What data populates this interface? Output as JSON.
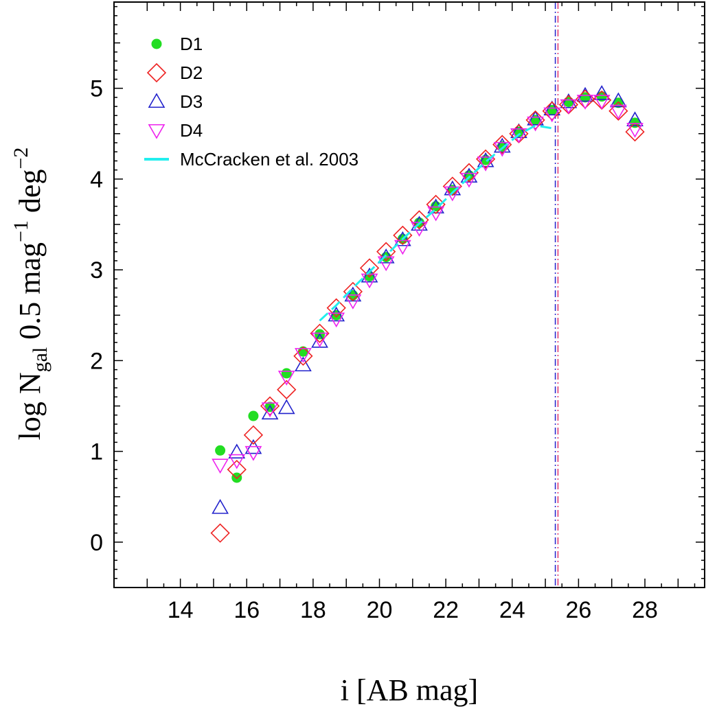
{
  "chart_data": {
    "type": "scatter",
    "title": "",
    "xlabel": "i [AB mag]",
    "ylabel": {
      "prefix": "log N",
      "subscript": "gal",
      "middle": " 0.5 mag",
      "superscript1": "−1",
      "middle2": " deg",
      "superscript2": "−2"
    },
    "xlim": [
      12,
      29.8
    ],
    "ylim": [
      -0.5,
      5.95
    ],
    "xticks": [
      "14",
      "16",
      "18",
      "20",
      "22",
      "24",
      "26",
      "28"
    ],
    "yticks": [
      "0",
      "1",
      "2",
      "3",
      "4",
      "5"
    ],
    "grid": false,
    "legend_position": "top-left",
    "vertical_lines": [
      {
        "x": 25.3,
        "color": "#2222cc"
      },
      {
        "x": 25.38,
        "color": "#e0306a"
      }
    ],
    "series": [
      {
        "name": "D1",
        "marker": "filled-circle",
        "color": "#22dd22",
        "x": [
          15.2,
          15.7,
          16.2,
          16.7,
          17.2,
          17.7,
          18.2,
          18.7,
          19.2,
          19.7,
          20.2,
          20.7,
          21.2,
          21.7,
          22.2,
          22.7,
          23.2,
          23.7,
          24.2,
          24.7,
          25.2,
          25.7,
          26.2,
          26.7,
          27.2,
          27.7
        ],
        "y": [
          1.01,
          0.71,
          1.39,
          1.49,
          1.86,
          2.1,
          2.29,
          2.5,
          2.72,
          2.93,
          3.14,
          3.34,
          3.52,
          3.7,
          3.88,
          4.04,
          4.21,
          4.36,
          4.52,
          4.65,
          4.76,
          4.85,
          4.9,
          4.91,
          4.84,
          4.62
        ]
      },
      {
        "name": "D2",
        "marker": "open-diamond",
        "color": "#ee2222",
        "x": [
          15.2,
          15.7,
          16.2,
          16.7,
          17.2,
          17.7,
          18.2,
          18.7,
          19.2,
          19.7,
          20.2,
          20.7,
          21.2,
          21.7,
          22.2,
          22.7,
          23.2,
          23.7,
          24.2,
          24.7,
          25.2,
          25.7,
          26.2,
          26.7,
          27.2,
          27.7
        ],
        "y": [
          0.1,
          0.8,
          1.18,
          1.5,
          1.68,
          2.05,
          2.3,
          2.58,
          2.76,
          3.02,
          3.2,
          3.38,
          3.55,
          3.72,
          3.92,
          4.07,
          4.22,
          4.38,
          4.5,
          4.65,
          4.75,
          4.82,
          4.88,
          4.87,
          4.75,
          4.52
        ]
      },
      {
        "name": "D3",
        "marker": "open-triangle-up",
        "color": "#2222cc",
        "x": [
          15.2,
          15.7,
          16.2,
          16.7,
          17.2,
          17.7,
          18.2,
          18.7,
          19.2,
          19.7,
          20.2,
          20.7,
          21.2,
          21.7,
          22.2,
          22.7,
          23.2,
          23.7,
          24.2,
          24.7,
          25.2,
          25.7,
          26.2,
          26.7,
          27.2,
          27.7
        ],
        "y": [
          0.38,
          0.99,
          1.04,
          1.42,
          1.48,
          1.95,
          2.21,
          2.5,
          2.72,
          2.93,
          3.14,
          3.33,
          3.5,
          3.69,
          3.89,
          4.03,
          4.2,
          4.36,
          4.52,
          4.66,
          4.77,
          4.85,
          4.92,
          4.94,
          4.86,
          4.65
        ]
      },
      {
        "name": "D4",
        "marker": "open-triangle-down",
        "color": "#ee22ee",
        "x": [
          15.2,
          15.7,
          16.2,
          16.7,
          17.2,
          17.7,
          18.2,
          18.7,
          19.2,
          19.7,
          20.2,
          20.7,
          21.2,
          21.7,
          22.2,
          22.7,
          23.2,
          23.7,
          24.2,
          24.7,
          25.2,
          25.7,
          26.2,
          26.7,
          27.2,
          27.7
        ],
        "y": [
          0.85,
          0.9,
          0.99,
          1.47,
          1.82,
          2.07,
          2.24,
          2.46,
          2.66,
          2.89,
          3.08,
          3.26,
          3.46,
          3.63,
          3.85,
          4.0,
          4.18,
          4.34,
          4.49,
          4.62,
          4.72,
          4.81,
          4.86,
          4.86,
          4.75,
          4.55
        ]
      },
      {
        "name": "McCracken et al. 2003",
        "marker": "line",
        "color": "#22eeee",
        "x": [
          18.2,
          18.7,
          19.2,
          19.7,
          20.2,
          20.7,
          21.2,
          21.7,
          22.2,
          22.7,
          23.2,
          23.7,
          24.2,
          24.7,
          25.2
        ],
        "y": [
          2.44,
          2.61,
          2.8,
          2.98,
          3.16,
          3.34,
          3.51,
          3.67,
          3.85,
          4.02,
          4.19,
          4.34,
          4.49,
          4.59,
          4.56
        ]
      }
    ]
  }
}
